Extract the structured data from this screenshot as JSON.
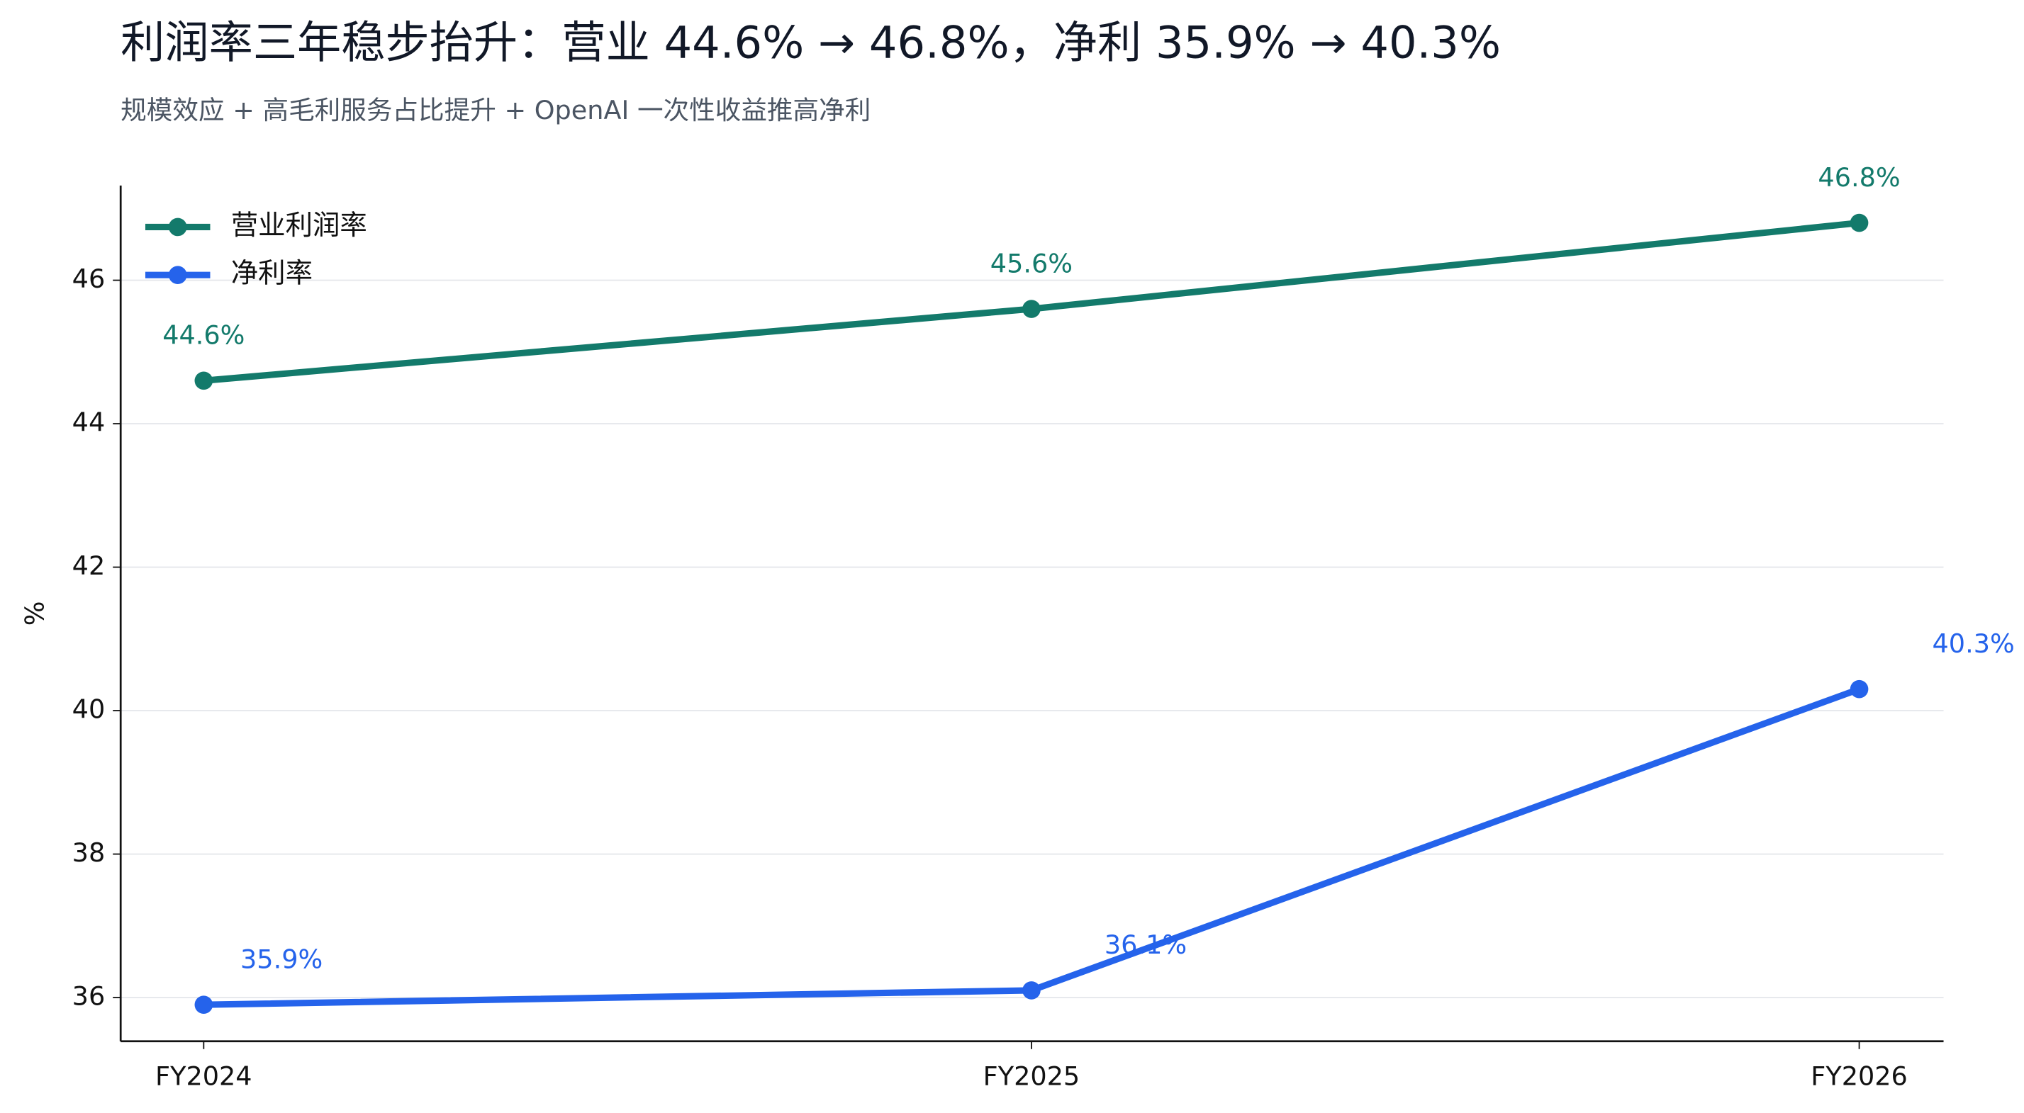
{
  "chart_data": {
    "type": "line",
    "title": "利润率三年稳步抬升：营业 44.6% → 46.8%，净利 35.9% → 40.3%",
    "subtitle": "规模效应 + 高毛利服务占比提升 + OpenAI 一次性收益推高净利",
    "y_label": "%",
    "categories": [
      "FY2024",
      "FY2025",
      "FY2026"
    ],
    "series": [
      {
        "name": "营业利润率",
        "color": "#137a6b",
        "values": [
          44.6,
          45.6,
          46.8
        ],
        "value_labels": [
          "44.6%",
          "45.6%",
          "46.8%"
        ]
      },
      {
        "name": "净利率",
        "color": "#2563eb",
        "values": [
          35.9,
          36.1,
          40.3
        ],
        "value_labels": [
          "35.9%",
          "36.1%",
          "40.3%"
        ]
      }
    ],
    "ylim": [
      35.39,
      47.32
    ],
    "yticks": [
      36,
      38,
      40,
      42,
      44,
      46
    ],
    "grid": true,
    "legend": "upper left"
  }
}
